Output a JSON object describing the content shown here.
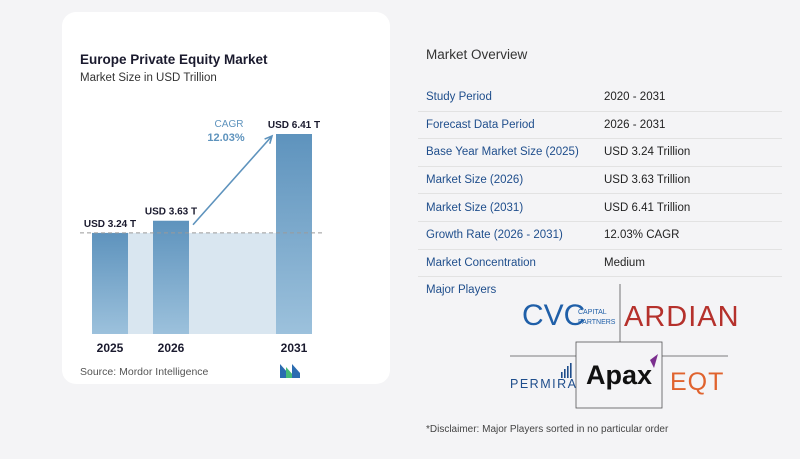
{
  "chart_data": {
    "type": "bar",
    "title": "Europe Private Equity Market",
    "subtitle": "Market Size in USD Trillion",
    "categories": [
      "2025",
      "2026",
      "2031"
    ],
    "values": [
      3.24,
      3.63,
      6.41
    ],
    "value_labels": [
      "USD 3.24 T",
      "USD 3.63 T",
      "USD 6.41 T"
    ],
    "cagr_label": "CAGR",
    "cagr_value": "12.03%",
    "colors": {
      "bar": "#5e93bd",
      "bar_light": "#9cc1dc",
      "band": "#d9e6f0",
      "arrow": "#5e93bd",
      "cagr_text": "#5e93bd"
    },
    "ylim": [
      0,
      7.2
    ],
    "grid": false,
    "source": "Source:  Mordor Intelligence"
  },
  "overview": {
    "title": "Market Overview",
    "rows": [
      {
        "label": "Study Period",
        "value": "2020 - 2031"
      },
      {
        "label": "Forecast Data Period",
        "value": "2026 - 2031"
      },
      {
        "label": "Base Year Market Size (2025)",
        "value": "USD 3.24 Trillion"
      },
      {
        "label": "Market Size (2026)",
        "value": "USD 3.63 Trillion"
      },
      {
        "label": "Market Size (2031)",
        "value": "USD 6.41 Trillion"
      },
      {
        "label": "Growth Rate (2026 - 2031)",
        "value": "12.03% CAGR"
      },
      {
        "label": "Market Concentration",
        "value": "Medium"
      }
    ],
    "players_label": "Major Players",
    "players": {
      "cvc": "CVC",
      "cvc_sub1": "CAPITAL",
      "cvc_sub2": "PARTNERS",
      "ardian": "ARDIAN",
      "permira": "PERMIRA",
      "apax": "Apax",
      "eqt": "EQT"
    },
    "disclaimer": "*Disclaimer: Major Players sorted in no particular order"
  }
}
